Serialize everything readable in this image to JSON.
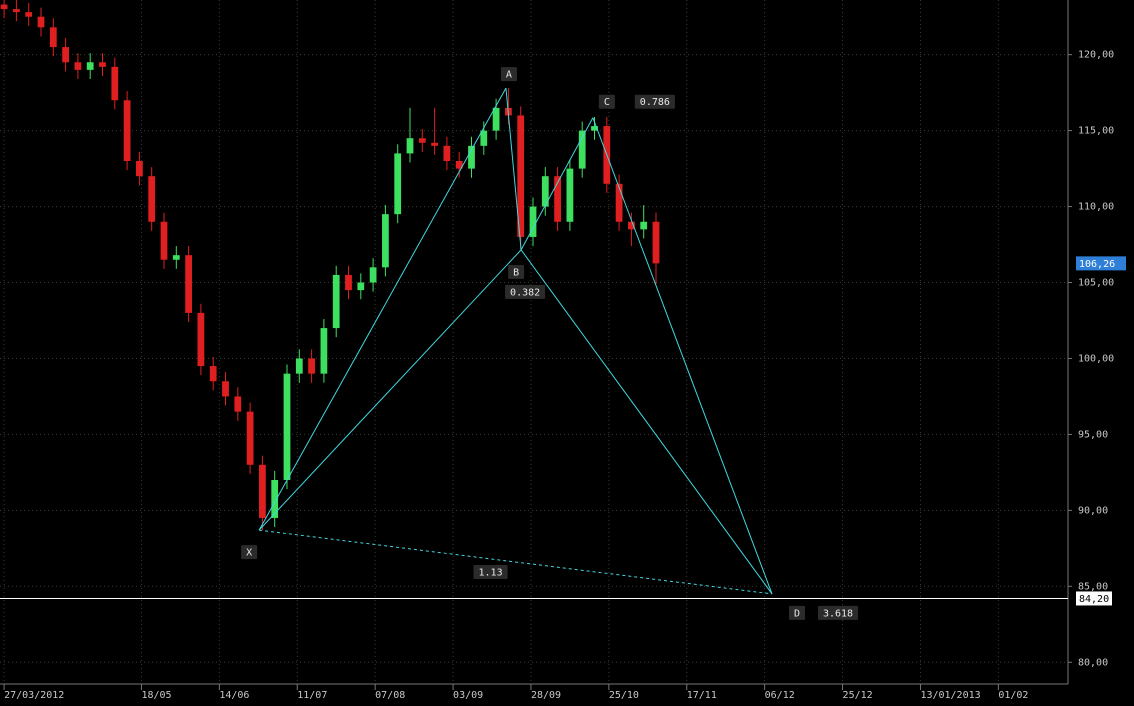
{
  "chart_data": {
    "type": "candlestick",
    "xlim": [
      -1,
      259
    ],
    "ylim": [
      78.7,
      123.6
    ],
    "yticks": [
      {
        "value": 80,
        "label": "80,00"
      },
      {
        "value": 85,
        "label": "85,00"
      },
      {
        "value": 90,
        "label": "90,00"
      },
      {
        "value": 95,
        "label": "95,00"
      },
      {
        "value": 100,
        "label": "100,00"
      },
      {
        "value": 105,
        "label": "105,00"
      },
      {
        "value": 110,
        "label": "110,00"
      },
      {
        "value": 115,
        "label": "115,00"
      },
      {
        "value": 120,
        "label": "120,00"
      }
    ],
    "xticks": [
      {
        "value": 0,
        "label": "27/03/2012"
      },
      {
        "value": 33.5,
        "label": "18/05"
      },
      {
        "value": 52.5,
        "label": "14/06"
      },
      {
        "value": 71.5,
        "label": "11/07"
      },
      {
        "value": 90.5,
        "label": "07/08"
      },
      {
        "value": 109.5,
        "label": "03/09"
      },
      {
        "value": 128.5,
        "label": "28/09"
      },
      {
        "value": 147.5,
        "label": "25/10"
      },
      {
        "value": 166.5,
        "label": "17/11"
      },
      {
        "value": 185.5,
        "label": "06/12"
      },
      {
        "value": 204.5,
        "label": "25/12"
      },
      {
        "value": 223.5,
        "label": "13/01/2013"
      },
      {
        "value": 242.5,
        "label": "01/02"
      }
    ],
    "grid": true,
    "up_color": "#3ee060",
    "down_color": "#e02020",
    "candles": {
      "x": [
        0,
        3,
        6,
        9,
        12,
        15,
        18,
        21,
        24,
        27,
        30,
        33,
        36,
        39,
        42,
        45,
        48,
        51,
        54,
        57,
        60,
        63,
        66,
        69,
        72,
        75,
        78,
        81,
        84,
        87,
        90,
        93,
        96,
        99,
        102,
        105,
        108,
        111,
        114,
        117,
        120,
        123,
        126,
        129,
        132,
        135,
        138,
        141,
        144,
        147,
        150,
        153,
        156,
        159
      ],
      "open": [
        123.3,
        123,
        122.8,
        122.5,
        121.8,
        120.5,
        119.5,
        119,
        119.5,
        119.2,
        117,
        113,
        112,
        109,
        106.5,
        106.8,
        103,
        99.5,
        98.5,
        97.5,
        96.5,
        93,
        89.5,
        92,
        99,
        100,
        99,
        102,
        105.5,
        104.5,
        105,
        106,
        109.5,
        113.5,
        114.5,
        114.2,
        114,
        113,
        112.5,
        114,
        115,
        116.5,
        116,
        108,
        110,
        112,
        109,
        112.5,
        115,
        115.3,
        111.5,
        109,
        108.5,
        109
      ],
      "high": [
        123.9,
        123.6,
        123.4,
        123.1,
        122.4,
        121.1,
        120.1,
        120.1,
        120.1,
        119.8,
        117.6,
        113.6,
        112.6,
        109.6,
        107.4,
        107.4,
        103.6,
        100.1,
        99.1,
        98.1,
        97.1,
        93.6,
        92.6,
        99.6,
        100.6,
        100.6,
        102.6,
        106.1,
        106.1,
        105.6,
        106.6,
        110.1,
        114.1,
        116.5,
        115.1,
        116.5,
        114.6,
        113.6,
        114.6,
        115.6,
        117.1,
        117.8,
        116.6,
        110.6,
        112.6,
        112.6,
        113.1,
        115.6,
        115.9,
        115.9,
        112.1,
        109.6,
        110.1,
        109.6
      ],
      "low": [
        122.4,
        122.2,
        121.9,
        121.2,
        119.9,
        118.9,
        118.4,
        118.4,
        118.6,
        116.4,
        112.4,
        111.4,
        108.4,
        105.9,
        105.9,
        102.4,
        98.9,
        97.9,
        96.9,
        95.9,
        92.4,
        88.7,
        88.9,
        91.4,
        98.4,
        98.4,
        98.4,
        101.4,
        103.9,
        103.9,
        104.4,
        105.4,
        108.9,
        112.9,
        113.6,
        113.4,
        112.4,
        111.9,
        111.9,
        113.4,
        114.4,
        115.4,
        107.2,
        107.4,
        109.4,
        108.4,
        108.4,
        111.9,
        114.4,
        110.9,
        108.4,
        107.4,
        107.9,
        104.9
      ],
      "close": [
        123,
        122.8,
        122.5,
        121.8,
        120.5,
        119.5,
        119,
        119.5,
        119.2,
        117,
        113,
        112,
        109,
        106.5,
        106.8,
        103,
        99.5,
        98.5,
        97.5,
        96.5,
        93,
        89.5,
        92,
        99,
        100,
        99,
        102,
        105.5,
        104.5,
        105,
        106,
        109.5,
        113.5,
        114.5,
        114.2,
        114,
        113,
        112.5,
        114,
        115,
        116.5,
        116,
        108,
        110,
        112,
        109,
        112.5,
        115,
        115.3,
        111.5,
        109,
        108.5,
        109,
        106.26
      ]
    },
    "pattern": {
      "color": "#40d8e0",
      "points": [
        {
          "name": "X",
          "x": 62.2,
          "y": 88.7
        },
        {
          "name": "A",
          "x": 122.4,
          "y": 117.8
        },
        {
          "name": "B",
          "x": 126.1,
          "y": 107.15
        },
        {
          "name": "C",
          "x": 143.6,
          "y": 115.85
        },
        {
          "name": "D",
          "x": 187.3,
          "y": 84.5
        }
      ],
      "ratios": [
        0.382,
        0.786,
        1.13,
        3.618
      ]
    },
    "last_price": {
      "value": 106.26,
      "label": "106,26"
    },
    "level": {
      "value": 84.2,
      "label": "84,20"
    }
  }
}
